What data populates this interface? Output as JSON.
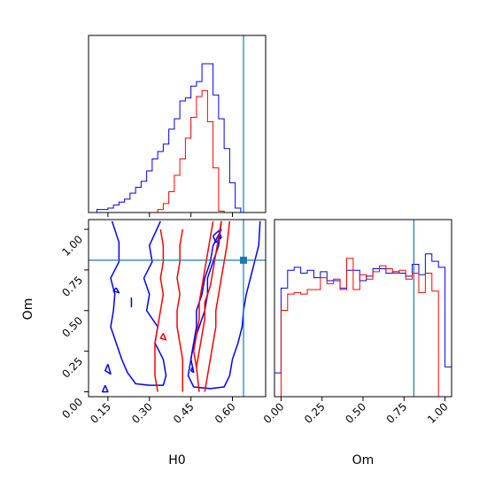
{
  "chart_data": {
    "type": "corner",
    "parameters": [
      "H0",
      "Om"
    ],
    "xlabel_h0": "H0",
    "xlabel_om": "Om",
    "ylabel_om": "Om",
    "truth": {
      "H0": 0.64,
      "Om": 0.81
    },
    "colors": {
      "blue": "#0000ff",
      "red": "#ff0000",
      "truth": "#1f77b4"
    },
    "ranges": {
      "H0": [
        0.08,
        0.72
      ],
      "Om": [
        -0.03,
        1.06
      ]
    },
    "ticks": {
      "H0": {
        "values": [
          0.15,
          0.3,
          0.45,
          0.6
        ],
        "labels": [
          "0.15",
          "0.30",
          "0.45",
          "0.60"
        ]
      },
      "Om": {
        "values": [
          0.0,
          0.25,
          0.5,
          0.75,
          1.0
        ],
        "labels": [
          "0.00",
          "0.25",
          "0.50",
          "0.75",
          "1.00"
        ]
      }
    },
    "histograms": {
      "H0": {
        "bin_start": 0.07,
        "bin_width": 0.02,
        "y_max": 100,
        "series": [
          {
            "color": "blue",
            "values": [
              0,
              0,
              2,
              2,
              3,
              5,
              7,
              9,
              13,
              17,
              21,
              28,
              36,
              41,
              46,
              56,
              63,
              75,
              77,
              85,
              88,
              100,
              100,
              79,
              63,
              43,
              20,
              3,
              0
            ]
          },
          {
            "color": "red",
            "values": [
              0,
              0,
              0,
              0,
              0,
              0,
              0,
              0,
              0,
              0,
              0,
              0,
              0,
              2,
              6,
              14,
              25,
              36,
              50,
              64,
              78,
              82,
              61,
              30,
              1,
              0,
              0,
              0,
              0
            ]
          }
        ]
      },
      "Om": {
        "bin_start": -0.04,
        "bin_width": 0.04,
        "y_max": 100,
        "series": [
          {
            "color": "blue",
            "values": [
              16,
              73,
              85,
              87,
              83,
              85,
              80,
              84,
              78,
              78,
              73,
              85,
              85,
              78,
              81,
              86,
              86,
              83,
              84,
              83,
              81,
              89,
              82,
              96,
              91,
              87,
              20
            ]
          },
          {
            "color": "red",
            "values": [
              0,
              58,
              69,
              70,
              69,
              72,
              72,
              80,
              76,
              79,
              72,
              93,
              72,
              82,
              79,
              84,
              88,
              86,
              83,
              85,
              79,
              83,
              70,
              83,
              71,
              0,
              0
            ]
          }
        ]
      }
    },
    "contours": [
      {
        "color": "blue",
        "points": [
          [
            0.165,
            1.05
          ],
          [
            0.19,
            0.92
          ],
          [
            0.19,
            0.8
          ],
          [
            0.16,
            0.7
          ],
          [
            0.175,
            0.6
          ],
          [
            0.17,
            0.5
          ],
          [
            0.16,
            0.4
          ],
          [
            0.18,
            0.3
          ],
          [
            0.2,
            0.2
          ],
          [
            0.22,
            0.12
          ],
          [
            0.25,
            0.05
          ],
          [
            0.3,
            0.04
          ],
          [
            0.35,
            0.04
          ],
          [
            0.36,
            0.1
          ],
          [
            0.35,
            0.2
          ],
          [
            0.32,
            0.3
          ],
          [
            0.33,
            0.4
          ],
          [
            0.29,
            0.5
          ],
          [
            0.3,
            0.6
          ],
          [
            0.28,
            0.7
          ],
          [
            0.31,
            0.8
          ],
          [
            0.3,
            0.9
          ],
          [
            0.34,
            1.05
          ]
        ]
      },
      {
        "color": "blue",
        "points": [
          [
            0.7,
            1.05
          ],
          [
            0.695,
            0.9
          ],
          [
            0.68,
            0.8
          ],
          [
            0.665,
            0.7
          ],
          [
            0.65,
            0.6
          ],
          [
            0.64,
            0.5
          ],
          [
            0.635,
            0.4
          ],
          [
            0.62,
            0.3
          ],
          [
            0.6,
            0.2
          ],
          [
            0.59,
            0.1
          ],
          [
            0.57,
            0.03
          ],
          [
            0.52,
            0.02
          ],
          [
            0.46,
            0.03
          ],
          [
            0.44,
            0.1
          ],
          [
            0.45,
            0.2
          ],
          [
            0.46,
            0.3
          ],
          [
            0.48,
            0.4
          ],
          [
            0.5,
            0.5
          ],
          [
            0.51,
            0.6
          ],
          [
            0.51,
            0.7
          ],
          [
            0.53,
            0.8
          ],
          [
            0.55,
            0.9
          ],
          [
            0.56,
            1.05
          ]
        ]
      },
      {
        "color": "blue",
        "points": [
          [
            0.56,
            1.0
          ],
          [
            0.53,
            0.9
          ],
          [
            0.52,
            0.8
          ],
          [
            0.5,
            0.7
          ],
          [
            0.49,
            0.6
          ],
          [
            0.47,
            0.5
          ],
          [
            0.47,
            0.4
          ],
          [
            0.46,
            0.3
          ],
          [
            0.45,
            0.2
          ],
          [
            0.46,
            0.12
          ]
        ]
      },
      {
        "color": "blue",
        "points": [
          [
            0.53,
            0.96
          ],
          [
            0.55,
            0.99
          ],
          [
            0.56,
            0.95
          ],
          [
            0.54,
            0.92
          ],
          [
            0.53,
            0.96
          ]
        ]
      },
      {
        "color": "blue",
        "points": [
          [
            0.14,
            0.04
          ],
          [
            0.15,
            0.0
          ],
          [
            0.13,
            0.0
          ],
          [
            0.14,
            0.04
          ]
        ]
      },
      {
        "color": "blue",
        "points": [
          [
            0.15,
            0.17
          ],
          [
            0.16,
            0.11
          ],
          [
            0.14,
            0.13
          ],
          [
            0.15,
            0.17
          ]
        ]
      },
      {
        "color": "blue",
        "points": [
          [
            0.18,
            0.64
          ],
          [
            0.19,
            0.61
          ],
          [
            0.17,
            0.62
          ],
          [
            0.18,
            0.64
          ]
        ]
      },
      {
        "color": "blue",
        "points": [
          [
            0.235,
            0.58
          ],
          [
            0.235,
            0.52
          ]
        ]
      },
      {
        "color": "blue",
        "points": [
          [
            0.455,
            0.15
          ],
          [
            0.46,
            0.12
          ],
          [
            0.45,
            0.13
          ],
          [
            0.455,
            0.15
          ]
        ]
      },
      {
        "color": "red",
        "points": [
          [
            0.34,
            1.0
          ],
          [
            0.35,
            0.9
          ],
          [
            0.35,
            0.8
          ],
          [
            0.34,
            0.7
          ],
          [
            0.35,
            0.6
          ],
          [
            0.34,
            0.5
          ],
          [
            0.33,
            0.4
          ],
          [
            0.32,
            0.3
          ],
          [
            0.32,
            0.2
          ],
          [
            0.32,
            0.1
          ],
          [
            0.33,
            0.0
          ]
        ]
      },
      {
        "color": "red",
        "points": [
          [
            0.42,
            1.0
          ],
          [
            0.41,
            0.9
          ],
          [
            0.41,
            0.8
          ],
          [
            0.4,
            0.7
          ],
          [
            0.41,
            0.6
          ],
          [
            0.4,
            0.5
          ],
          [
            0.4,
            0.4
          ],
          [
            0.41,
            0.3
          ],
          [
            0.42,
            0.2
          ],
          [
            0.42,
            0.1
          ],
          [
            0.42,
            0.0
          ]
        ]
      },
      {
        "color": "red",
        "points": [
          [
            0.59,
            1.05
          ],
          [
            0.58,
            0.9
          ],
          [
            0.57,
            0.8
          ],
          [
            0.56,
            0.7
          ],
          [
            0.55,
            0.6
          ],
          [
            0.54,
            0.5
          ],
          [
            0.54,
            0.4
          ],
          [
            0.53,
            0.3
          ],
          [
            0.52,
            0.2
          ],
          [
            0.51,
            0.1
          ],
          [
            0.5,
            0.0
          ]
        ]
      },
      {
        "color": "red",
        "points": [
          [
            0.56,
            1.05
          ],
          [
            0.55,
            0.95
          ],
          [
            0.54,
            0.85
          ],
          [
            0.53,
            0.75
          ],
          [
            0.52,
            0.65
          ],
          [
            0.5,
            0.55
          ],
          [
            0.5,
            0.45
          ],
          [
            0.49,
            0.35
          ],
          [
            0.48,
            0.25
          ],
          [
            0.47,
            0.15
          ],
          [
            0.48,
            0.0
          ]
        ]
      },
      {
        "color": "red",
        "points": [
          [
            0.53,
            1.05
          ],
          [
            0.52,
            0.95
          ],
          [
            0.51,
            0.85
          ],
          [
            0.5,
            0.75
          ],
          [
            0.49,
            0.65
          ],
          [
            0.48,
            0.55
          ],
          [
            0.48,
            0.45
          ],
          [
            0.47,
            0.35
          ],
          [
            0.46,
            0.25
          ],
          [
            0.47,
            0.15
          ]
        ]
      },
      {
        "color": "red",
        "points": [
          [
            0.35,
            0.36
          ],
          [
            0.36,
            0.32
          ],
          [
            0.34,
            0.33
          ],
          [
            0.35,
            0.36
          ]
        ]
      }
    ]
  }
}
